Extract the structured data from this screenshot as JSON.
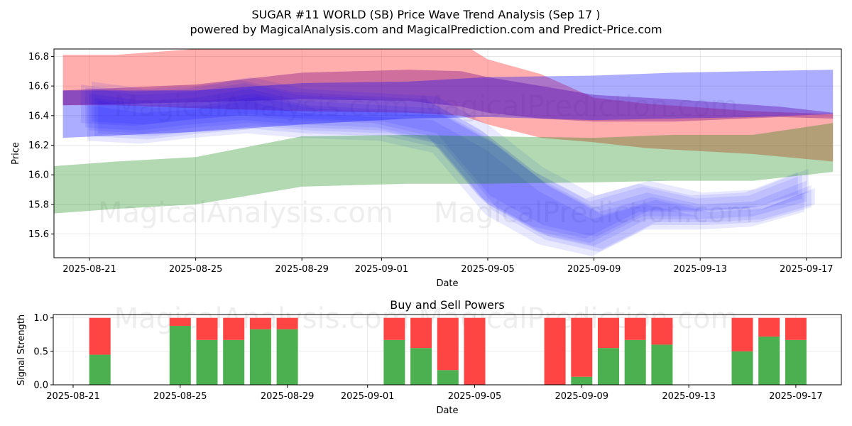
{
  "title_line1": "SUGAR #11 WORLD (SB) Price Wave Trend Analysis (Sep 17 )",
  "title_line2": "powered by MagicalAnalysis.com and MagicalPrediction.com and Predict-Price.com",
  "watermarks": {
    "top_center": "MagicalAnalysis.com    MagicalPrediction.com",
    "bottom_left": "MagicalAnalysis.com",
    "bottom_right": "MagicalPrediction.com",
    "lower_chart": "MagicalAnalysis.com    MagicalPrediction.com"
  },
  "colors": {
    "red_band": "#ff0000",
    "purple_band": "#8b1a8b",
    "blue_band": "#0000ff",
    "green_band": "#008000",
    "buy_bar": "#4caf50",
    "sell_bar": "#ff4444"
  },
  "chart_data": [
    {
      "type": "area",
      "title": "",
      "xlabel": "Date",
      "ylabel": "Price",
      "xlim": [
        "2025-08-19",
        "2025-09-18"
      ],
      "ylim": [
        15.44,
        16.85
      ],
      "x_ticks": [
        "2025-08-21",
        "2025-08-25",
        "2025-08-29",
        "2025-09-01",
        "2025-09-05",
        "2025-09-09",
        "2025-09-13",
        "2025-09-17"
      ],
      "y_ticks": [
        15.6,
        15.8,
        16.0,
        16.2,
        16.4,
        16.6,
        16.8
      ],
      "grid": true,
      "series": [
        {
          "name": "red band",
          "color": "#ff0000",
          "x": [
            "2025-08-20",
            "2025-08-22",
            "2025-08-25",
            "2025-08-29",
            "2025-09-02",
            "2025-09-04",
            "2025-09-05",
            "2025-09-07",
            "2025-09-09",
            "2025-09-11",
            "2025-09-15",
            "2025-09-18"
          ],
          "upper": [
            16.81,
            16.81,
            16.85,
            16.89,
            16.9,
            16.89,
            16.78,
            16.68,
            16.52,
            16.48,
            16.43,
            16.41
          ],
          "lower": [
            16.47,
            16.47,
            16.45,
            16.43,
            16.42,
            16.4,
            16.34,
            16.25,
            16.22,
            16.18,
            16.14,
            16.09
          ]
        },
        {
          "name": "purple band",
          "color": "#8b1a8b",
          "x": [
            "2025-08-20",
            "2025-08-25",
            "2025-08-29",
            "2025-09-02",
            "2025-09-04",
            "2025-09-05",
            "2025-09-07",
            "2025-09-09",
            "2025-09-12",
            "2025-09-16",
            "2025-09-18"
          ],
          "upper": [
            16.57,
            16.61,
            16.69,
            16.71,
            16.7,
            16.66,
            16.6,
            16.54,
            16.51,
            16.46,
            16.42
          ],
          "lower": [
            16.47,
            16.49,
            16.51,
            16.5,
            16.46,
            16.42,
            16.38,
            16.36,
            16.36,
            16.39,
            16.38
          ]
        },
        {
          "name": "blue upper band",
          "color": "#0000ff",
          "x": [
            "2025-08-20",
            "2025-08-25",
            "2025-08-29",
            "2025-09-02",
            "2025-09-05",
            "2025-09-09",
            "2025-09-12",
            "2025-09-15",
            "2025-09-18"
          ],
          "upper": [
            16.57,
            16.57,
            16.62,
            16.63,
            16.66,
            16.67,
            16.69,
            16.7,
            16.71
          ],
          "lower": [
            16.25,
            16.29,
            16.34,
            16.38,
            16.39,
            16.37,
            16.38,
            16.39,
            16.41
          ]
        },
        {
          "name": "blue short-term waves",
          "color": "#0000ff",
          "x": [
            "2025-08-21",
            "2025-08-23",
            "2025-08-25",
            "2025-08-27",
            "2025-08-29",
            "2025-09-01",
            "2025-09-03",
            "2025-09-05",
            "2025-09-07",
            "2025-09-09",
            "2025-09-11",
            "2025-09-13",
            "2025-09-15",
            "2025-09-17"
          ],
          "upper": [
            16.55,
            16.5,
            16.52,
            16.58,
            16.5,
            16.47,
            16.45,
            16.25,
            15.97,
            15.78,
            15.88,
            15.8,
            15.82,
            15.96
          ],
          "lower": [
            16.3,
            16.28,
            16.32,
            16.35,
            16.32,
            16.3,
            16.22,
            15.8,
            15.6,
            15.52,
            15.7,
            15.7,
            15.72,
            15.82
          ]
        },
        {
          "name": "green band",
          "color": "#008000",
          "x": [
            "2025-08-19",
            "2025-08-22",
            "2025-08-25",
            "2025-08-29",
            "2025-09-02",
            "2025-09-05",
            "2025-09-09",
            "2025-09-12",
            "2025-09-15",
            "2025-09-18"
          ],
          "upper": [
            16.05,
            16.09,
            16.12,
            16.26,
            16.27,
            16.26,
            16.25,
            16.27,
            16.27,
            16.35
          ],
          "lower": [
            15.73,
            15.77,
            15.8,
            15.92,
            15.94,
            15.94,
            15.95,
            15.96,
            15.96,
            16.02
          ]
        }
      ]
    },
    {
      "type": "bar",
      "title": "Buy and Sell Powers",
      "xlabel": "Date",
      "ylabel": "Signal Strength",
      "xlim": [
        "2025-08-20",
        "2025-09-18"
      ],
      "ylim": [
        0,
        1.05
      ],
      "x_ticks": [
        "2025-08-21",
        "2025-08-25",
        "2025-08-29",
        "2025-09-01",
        "2025-09-05",
        "2025-09-09",
        "2025-09-13",
        "2025-09-17"
      ],
      "y_ticks": [
        0.0,
        0.5,
        1.0
      ],
      "grid": true,
      "categories": [
        "2025-08-22",
        "2025-08-25",
        "2025-08-26",
        "2025-08-27",
        "2025-08-28",
        "2025-08-29",
        "2025-09-02",
        "2025-09-03",
        "2025-09-04",
        "2025-09-05",
        "2025-09-08",
        "2025-09-09",
        "2025-09-10",
        "2025-09-11",
        "2025-09-12",
        "2025-09-15",
        "2025-09-16",
        "2025-09-17"
      ],
      "series": [
        {
          "name": "Buy",
          "color": "#4caf50",
          "values": [
            0.45,
            0.88,
            0.67,
            0.67,
            0.83,
            0.83,
            0.67,
            0.55,
            0.22,
            0.0,
            0.0,
            0.12,
            0.55,
            0.67,
            0.6,
            0.5,
            0.72,
            0.67
          ]
        },
        {
          "name": "Sell",
          "color": "#ff4444",
          "values": [
            0.55,
            0.12,
            0.33,
            0.33,
            0.17,
            0.17,
            0.33,
            0.45,
            0.78,
            1.0,
            1.0,
            0.88,
            0.45,
            0.33,
            0.4,
            0.5,
            0.28,
            0.33
          ]
        }
      ]
    }
  ]
}
